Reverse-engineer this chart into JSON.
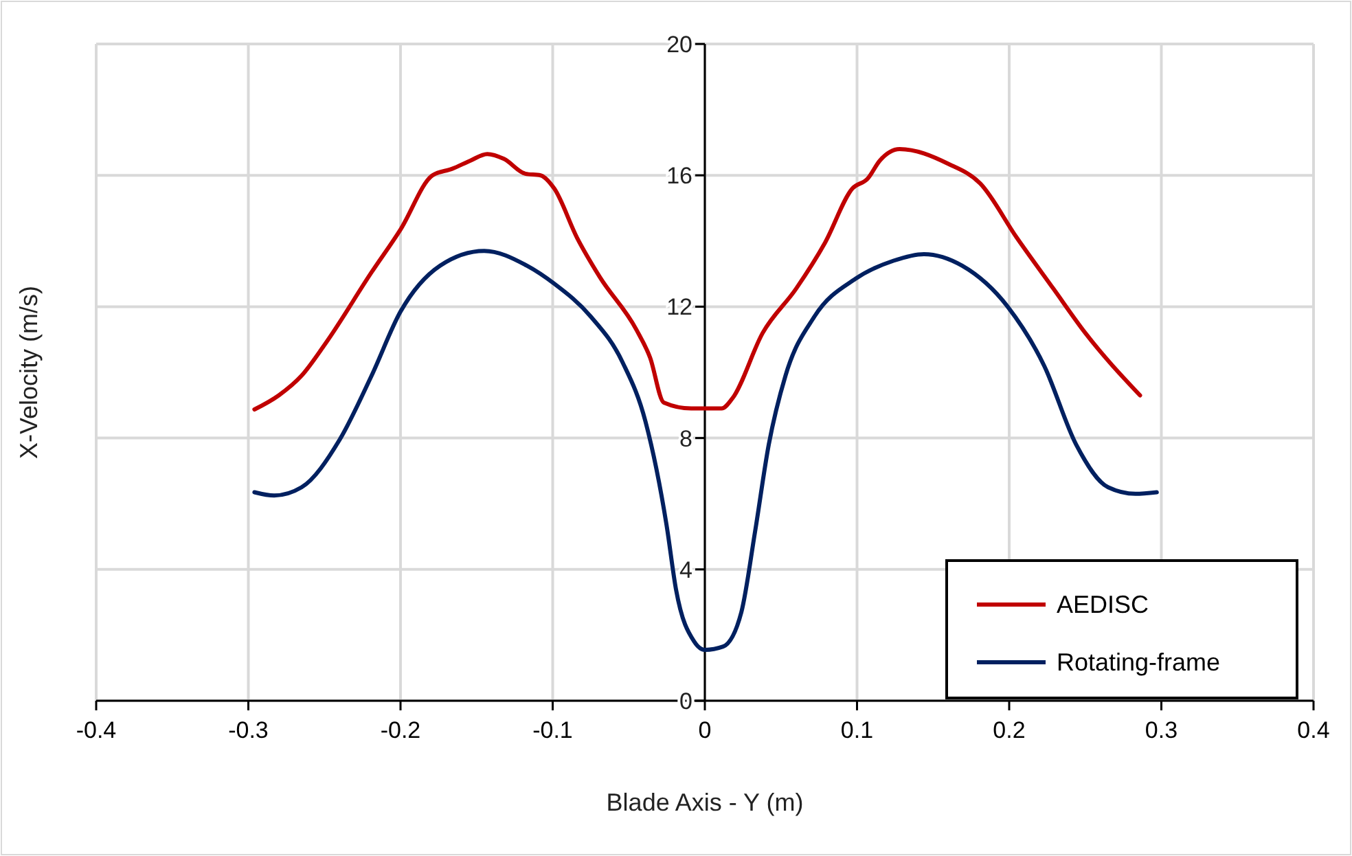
{
  "chart_data": {
    "type": "line",
    "xlabel": "Blade Axis - Y (m)",
    "ylabel": "X-Velocity (m/s)",
    "xlim": [
      -0.4,
      0.4
    ],
    "xticks": [
      -0.4,
      -0.3,
      -0.2,
      -0.1,
      0,
      0.1,
      0.2,
      0.3,
      0.4
    ],
    "ylim": [
      0,
      20
    ],
    "yticks": [
      0,
      4,
      8,
      12,
      16,
      20
    ],
    "grid": true,
    "legend": "bottom right",
    "line_style": "solid",
    "series": [
      {
        "name": "AEDISC",
        "color": "#c00000",
        "x": [
          -0.296,
          -0.28,
          -0.265,
          -0.249,
          -0.219,
          -0.2,
          -0.179,
          -0.166,
          -0.154,
          -0.143,
          -0.132,
          -0.118,
          -0.108,
          -0.099,
          -0.084,
          -0.069,
          -0.045,
          -0.036,
          -0.027,
          -0.009,
          0.011,
          0.018,
          0.038,
          0.06,
          0.079,
          0.097,
          0.107,
          0.115,
          0.128,
          0.16,
          0.181,
          0.205,
          0.229,
          0.25,
          0.286
        ],
        "values": [
          8.87,
          9.3,
          9.9,
          10.9,
          13.05,
          14.35,
          16.0,
          16.2,
          16.45,
          16.65,
          16.5,
          16.05,
          16.0,
          15.6,
          14.1,
          12.9,
          11.3,
          10.45,
          9.08,
          8.9,
          8.9,
          9.2,
          11.2,
          12.55,
          13.95,
          15.6,
          15.9,
          16.45,
          16.8,
          16.35,
          15.75,
          14.1,
          12.55,
          11.2,
          9.3
        ]
      },
      {
        "name": "Rotating-frame",
        "color": "#002060",
        "x": [
          -0.296,
          -0.283,
          -0.265,
          -0.24,
          -0.219,
          -0.2,
          -0.174,
          -0.145,
          -0.117,
          -0.099,
          -0.075,
          -0.054,
          -0.039,
          -0.025,
          -0.019,
          -0.007,
          0.0,
          0.012,
          0.024,
          0.033,
          0.042,
          0.053,
          0.072,
          0.099,
          0.124,
          0.144,
          0.169,
          0.199,
          0.223,
          0.244,
          0.265,
          0.283,
          0.297
        ],
        "values": [
          6.35,
          6.25,
          6.5,
          7.95,
          9.9,
          11.85,
          13.25,
          13.7,
          13.25,
          12.7,
          11.7,
          10.3,
          8.5,
          5.3,
          3.4,
          1.8,
          1.55,
          1.65,
          2.7,
          5.15,
          7.8,
          9.9,
          11.7,
          12.85,
          13.4,
          13.6,
          13.25,
          12.0,
          10.2,
          7.8,
          6.5,
          6.3,
          6.35
        ]
      }
    ]
  }
}
